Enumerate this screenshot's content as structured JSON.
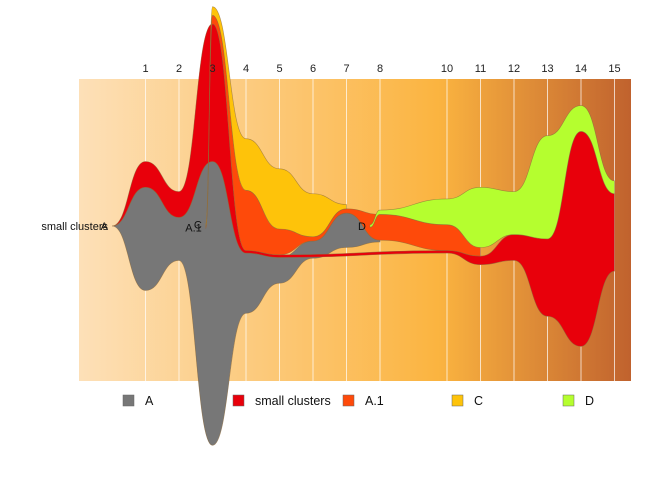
{
  "chart_data": {
    "type": "area",
    "subtype": "streamgraph / alluvial",
    "x_ticks": [
      1,
      2,
      3,
      4,
      5,
      6,
      7,
      8,
      10,
      11,
      12,
      13,
      14,
      15
    ],
    "background": {
      "style": "horizontal gradient",
      "colors": [
        "#fde0b8",
        "#fbb440",
        "#c0622e"
      ]
    },
    "series": [
      {
        "name": "A",
        "color": "#777777",
        "start_label_x": 0,
        "points": [
          [
            0,
            0,
            0
          ],
          [
            1,
            -12,
            12
          ],
          [
            2,
            -5,
            5
          ],
          [
            3,
            -33,
            33
          ],
          [
            4,
            -7,
            7
          ],
          [
            5,
            -3,
            3
          ],
          [
            6,
            -2,
            2
          ],
          [
            7,
            -4,
            4
          ],
          [
            8,
            -0.2,
            0.2
          ]
        ]
      },
      {
        "name": "small clusters",
        "color": "#e8000b",
        "start_label_x": 0,
        "points": [
          [
            0,
            0,
            0
          ],
          [
            1,
            -3,
            3
          ],
          [
            2,
            -3,
            3
          ],
          [
            3,
            -16,
            16
          ],
          [
            4,
            -0.3,
            0.3
          ],
          [
            5,
            -0.3,
            0.3
          ],
          [
            10,
            -0.3,
            0.3
          ],
          [
            11,
            -1,
            1
          ],
          [
            12,
            -3,
            3
          ],
          [
            13,
            -9,
            9
          ],
          [
            14,
            -25,
            25
          ],
          [
            15,
            -9,
            9
          ]
        ]
      },
      {
        "name": "A.1",
        "color": "#fe4a0a",
        "start_label_x": 2.8,
        "points": [
          [
            2.8,
            -0.3,
            0.3
          ],
          [
            3,
            -1,
            1
          ],
          [
            4,
            -7,
            7
          ],
          [
            5,
            -3,
            3
          ],
          [
            6,
            -0.5,
            0.5
          ],
          [
            7,
            -0.5,
            0.5
          ],
          [
            8,
            -3,
            3
          ],
          [
            10,
            -3,
            3
          ],
          [
            11,
            -1,
            1
          ]
        ]
      },
      {
        "name": "C",
        "color": "#fec30a",
        "start_label_x": 2.8,
        "points": [
          [
            2.8,
            -0.3,
            0.3
          ],
          [
            3,
            -1,
            1
          ],
          [
            4,
            -6,
            6
          ],
          [
            5,
            -7,
            7
          ],
          [
            6,
            -5,
            5
          ],
          [
            7,
            -0.5,
            0.5
          ]
        ]
      },
      {
        "name": "D",
        "color": "#b5fe2f",
        "start_label_x": 7.7,
        "points": [
          [
            7.7,
            -0.3,
            0.3
          ],
          [
            8,
            -0.5,
            0.5
          ],
          [
            10,
            -3,
            3
          ],
          [
            11,
            -7,
            7
          ],
          [
            12,
            -5,
            5
          ],
          [
            13,
            -12,
            12
          ],
          [
            14,
            -3,
            3
          ],
          [
            15,
            -1.5,
            1.5
          ]
        ]
      }
    ],
    "stack_order": [
      "A",
      "small clusters",
      "A.1",
      "C",
      "D"
    ],
    "legend": {
      "position": "bottom",
      "entries": [
        "A",
        "small clusters",
        "A.1",
        "C",
        "D"
      ]
    }
  }
}
